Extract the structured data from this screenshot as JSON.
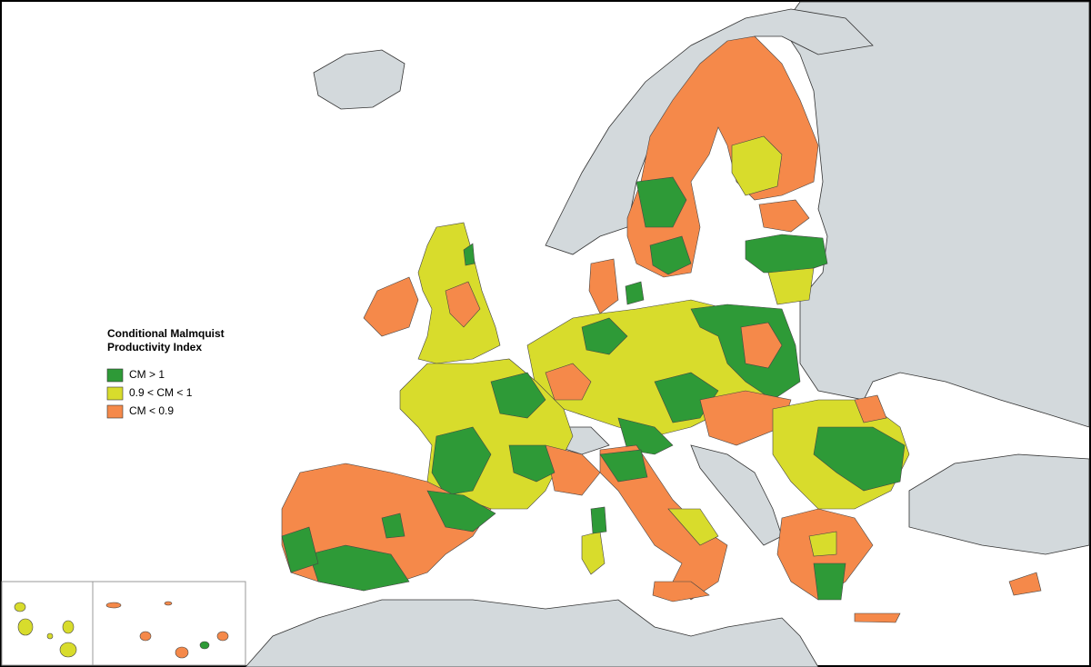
{
  "legend": {
    "title_lines": [
      "Conditional Malmquist",
      "Productivity Index"
    ],
    "items": [
      {
        "label": "CM > 1",
        "color": "#2e9a37"
      },
      {
        "label": "0.9 < CM < 1",
        "color": "#d8dc2c"
      },
      {
        "label": "CM < 0.9",
        "color": "#f5894a"
      }
    ]
  }
}
